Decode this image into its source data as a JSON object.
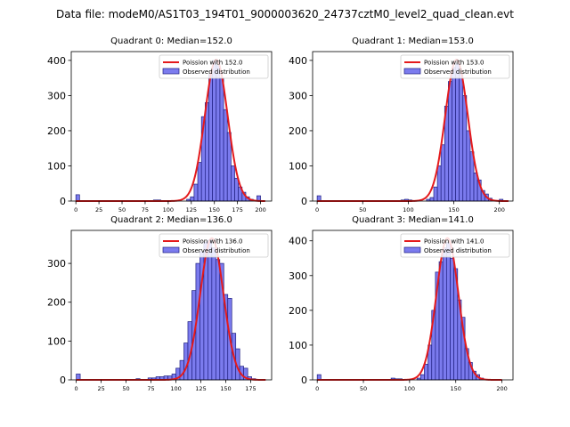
{
  "suptitle": "Data file: modeM0/AS1T03_194T01_9000003620_24737cztM0_level2_quad_clean.evt",
  "colors": {
    "bar_fill": "#7b7bee",
    "bar_edge": "#1f1f80",
    "poisson_line": "#e41a1c",
    "axis": "#000000"
  },
  "chart_data": [
    {
      "type": "bar",
      "title": "Quadrant 0: Median=152.0",
      "median": 152.0,
      "xlim": [
        -5,
        212
      ],
      "ylim": [
        0,
        425
      ],
      "xticks": [
        0,
        25,
        50,
        75,
        100,
        125,
        150,
        175,
        200
      ],
      "yticks": [
        0,
        100,
        200,
        300,
        400
      ],
      "bin_width": 4,
      "bins": [
        {
          "x": 0,
          "y": 18
        },
        {
          "x": 84,
          "y": 3
        },
        {
          "x": 88,
          "y": 3
        },
        {
          "x": 120,
          "y": 5
        },
        {
          "x": 124,
          "y": 12
        },
        {
          "x": 128,
          "y": 48
        },
        {
          "x": 132,
          "y": 110
        },
        {
          "x": 136,
          "y": 240
        },
        {
          "x": 140,
          "y": 280
        },
        {
          "x": 144,
          "y": 360
        },
        {
          "x": 148,
          "y": 400
        },
        {
          "x": 152,
          "y": 385
        },
        {
          "x": 156,
          "y": 350
        },
        {
          "x": 160,
          "y": 260
        },
        {
          "x": 164,
          "y": 195
        },
        {
          "x": 168,
          "y": 100
        },
        {
          "x": 172,
          "y": 65
        },
        {
          "x": 176,
          "y": 40
        },
        {
          "x": 180,
          "y": 25
        },
        {
          "x": 184,
          "y": 12
        },
        {
          "x": 188,
          "y": 5
        },
        {
          "x": 196,
          "y": 15
        }
      ],
      "poisson": {
        "lambda": 152.0,
        "peak": 402,
        "x_range": [
          0,
          205
        ]
      },
      "legend": {
        "line_label": "Poission with 152.0",
        "bar_label": "Observed distribution",
        "position": "upper right"
      }
    },
    {
      "type": "bar",
      "title": "Quadrant 1: Median=153.0",
      "median": 153.0,
      "xlim": [
        -5,
        215
      ],
      "ylim": [
        0,
        425
      ],
      "xticks": [
        0,
        50,
        100,
        150,
        200
      ],
      "yticks": [
        0,
        100,
        200,
        300,
        400
      ],
      "bin_width": 4,
      "bins": [
        {
          "x": 0,
          "y": 15
        },
        {
          "x": 92,
          "y": 3
        },
        {
          "x": 96,
          "y": 5
        },
        {
          "x": 100,
          "y": 3
        },
        {
          "x": 120,
          "y": 5
        },
        {
          "x": 124,
          "y": 10
        },
        {
          "x": 128,
          "y": 40
        },
        {
          "x": 132,
          "y": 100
        },
        {
          "x": 136,
          "y": 160
        },
        {
          "x": 140,
          "y": 270
        },
        {
          "x": 144,
          "y": 340
        },
        {
          "x": 148,
          "y": 380
        },
        {
          "x": 152,
          "y": 390
        },
        {
          "x": 156,
          "y": 360
        },
        {
          "x": 160,
          "y": 300
        },
        {
          "x": 164,
          "y": 200
        },
        {
          "x": 168,
          "y": 140
        },
        {
          "x": 172,
          "y": 80
        },
        {
          "x": 176,
          "y": 60
        },
        {
          "x": 180,
          "y": 30
        },
        {
          "x": 184,
          "y": 20
        },
        {
          "x": 188,
          "y": 8
        },
        {
          "x": 200,
          "y": 5
        }
      ],
      "poisson": {
        "lambda": 153.0,
        "peak": 402,
        "x_range": [
          0,
          210
        ]
      },
      "legend": {
        "line_label": "Poission with 153.0",
        "bar_label": "Observed distribution",
        "position": "upper right"
      }
    },
    {
      "type": "bar",
      "title": "Quadrant 2: Median=136.0",
      "median": 136.0,
      "xlim": [
        -5,
        196
      ],
      "ylim": [
        0,
        385
      ],
      "xticks": [
        0,
        25,
        50,
        75,
        100,
        125,
        150,
        175
      ],
      "yticks": [
        0,
        100,
        200,
        300
      ],
      "bin_width": 4,
      "bins": [
        {
          "x": 0,
          "y": 15
        },
        {
          "x": 60,
          "y": 3
        },
        {
          "x": 72,
          "y": 5
        },
        {
          "x": 76,
          "y": 5
        },
        {
          "x": 80,
          "y": 8
        },
        {
          "x": 84,
          "y": 8
        },
        {
          "x": 88,
          "y": 10
        },
        {
          "x": 92,
          "y": 10
        },
        {
          "x": 96,
          "y": 15
        },
        {
          "x": 100,
          "y": 30
        },
        {
          "x": 104,
          "y": 50
        },
        {
          "x": 108,
          "y": 95
        },
        {
          "x": 112,
          "y": 150
        },
        {
          "x": 116,
          "y": 230
        },
        {
          "x": 120,
          "y": 300
        },
        {
          "x": 124,
          "y": 330
        },
        {
          "x": 128,
          "y": 355
        },
        {
          "x": 132,
          "y": 360
        },
        {
          "x": 136,
          "y": 340
        },
        {
          "x": 140,
          "y": 310
        },
        {
          "x": 144,
          "y": 300
        },
        {
          "x": 148,
          "y": 220
        },
        {
          "x": 152,
          "y": 210
        },
        {
          "x": 156,
          "y": 120
        },
        {
          "x": 160,
          "y": 80
        },
        {
          "x": 164,
          "y": 35
        },
        {
          "x": 168,
          "y": 30
        },
        {
          "x": 172,
          "y": 8
        },
        {
          "x": 176,
          "y": 3
        }
      ],
      "poisson": {
        "lambda": 136.0,
        "peak": 365,
        "x_range": [
          0,
          190
        ]
      },
      "legend": {
        "line_label": "Poission with 136.0",
        "bar_label": "Observed distribution",
        "position": "upper right"
      }
    },
    {
      "type": "bar",
      "title": "Quadrant 3: Median=141.0",
      "median": 141.0,
      "xlim": [
        -5,
        212
      ],
      "ylim": [
        0,
        430
      ],
      "xticks": [
        0,
        50,
        100,
        150,
        200
      ],
      "yticks": [
        0,
        100,
        200,
        300,
        400
      ],
      "bin_width": 4,
      "bins": [
        {
          "x": 0,
          "y": 15
        },
        {
          "x": 80,
          "y": 5
        },
        {
          "x": 84,
          "y": 3
        },
        {
          "x": 88,
          "y": 3
        },
        {
          "x": 108,
          "y": 5
        },
        {
          "x": 112,
          "y": 15
        },
        {
          "x": 116,
          "y": 45
        },
        {
          "x": 120,
          "y": 100
        },
        {
          "x": 124,
          "y": 200
        },
        {
          "x": 128,
          "y": 310
        },
        {
          "x": 132,
          "y": 340
        },
        {
          "x": 136,
          "y": 380
        },
        {
          "x": 140,
          "y": 395
        },
        {
          "x": 144,
          "y": 350
        },
        {
          "x": 148,
          "y": 320
        },
        {
          "x": 152,
          "y": 230
        },
        {
          "x": 156,
          "y": 180
        },
        {
          "x": 160,
          "y": 90
        },
        {
          "x": 164,
          "y": 50
        },
        {
          "x": 168,
          "y": 25
        },
        {
          "x": 172,
          "y": 15
        },
        {
          "x": 176,
          "y": 5
        }
      ],
      "poisson": {
        "lambda": 141.0,
        "peak": 408,
        "x_range": [
          0,
          200
        ]
      },
      "legend": {
        "line_label": "Poission with 141.0",
        "bar_label": "Observed distribution",
        "position": "upper right"
      }
    }
  ]
}
